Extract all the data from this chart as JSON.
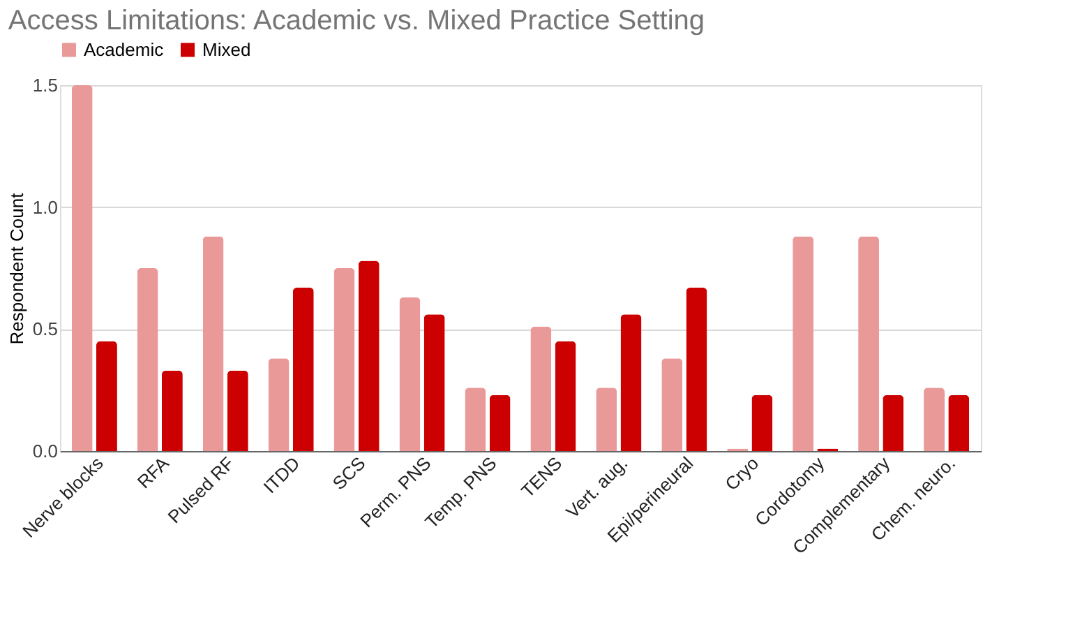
{
  "chart_data": {
    "type": "bar",
    "title": "Access Limitations: Academic vs. Mixed Practice Setting",
    "ylabel": "Respondent Count",
    "categories": [
      "Nerve blocks",
      "RFA",
      "Pulsed RF",
      "ITDD",
      "SCS",
      "Perm. PNS",
      "Temp. PNS",
      "TENS",
      "Vert. aug.",
      "Epi/perineural",
      "Cryo",
      "Cordotomy",
      "Complementary",
      "Chem. neuro."
    ],
    "series": [
      {
        "name": "Academic",
        "color": "#ea9999",
        "values": [
          1.5,
          0.75,
          0.88,
          0.38,
          0.75,
          0.63,
          0.26,
          0.51,
          0.26,
          0.38,
          0.01,
          0.88,
          0.88,
          0.26
        ]
      },
      {
        "name": "Mixed",
        "color": "#cc0000",
        "values": [
          0.45,
          0.33,
          0.33,
          0.67,
          0.78,
          0.56,
          0.23,
          0.45,
          0.56,
          0.67,
          0.23,
          0.01,
          0.23,
          0.23
        ]
      }
    ],
    "ylim": [
      0,
      1.5
    ],
    "yticks": [
      {
        "value": 0,
        "label": "0.0"
      },
      {
        "value": 0.5,
        "label": "0.5"
      },
      {
        "value": 1,
        "label": "1.0"
      },
      {
        "value": 1.5,
        "label": "1.5"
      }
    ],
    "grid": "y",
    "legend": "top"
  }
}
